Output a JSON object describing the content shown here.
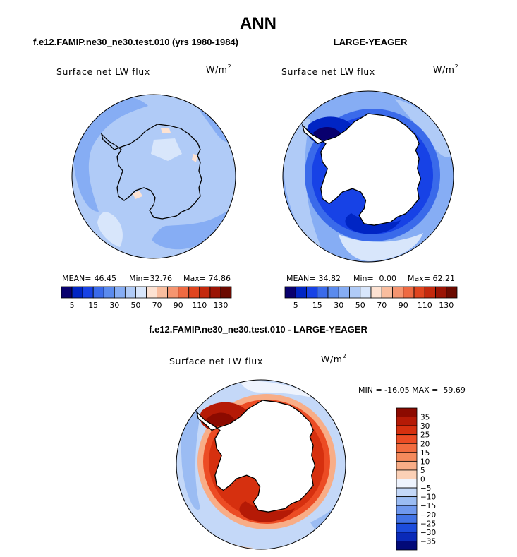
{
  "figure": {
    "title": "ANN",
    "panel_a_title": "f.e12.FAMIP.ne30_ne30.test.010 (yrs 1980-1984)",
    "panel_b_title": "LARGE-YEAGER",
    "panel_c_title": "f.e12.FAMIP.ne30_ne30.test.010 - LARGE-YEAGER"
  },
  "chart_data": [
    {
      "type": "heatmap",
      "projection": "south-polar-stereographic",
      "title": "f.e12.FAMIP.ne30_ne30.test.010 (yrs 1980-1984)",
      "variable": "Surface net LW flux",
      "units_base": "W/m",
      "units_exp": "2",
      "stats": {
        "mean_label": "MEAN=",
        "mean": "46.45",
        "min_label": "Min=",
        "min": "32.76",
        "max_label": "Max=",
        "max": "74.86"
      },
      "colorbar": {
        "orientation": "horizontal",
        "levels": [
          5,
          10,
          15,
          20,
          30,
          40,
          50,
          60,
          70,
          80,
          90,
          100,
          110,
          120,
          130
        ],
        "tick_labels": [
          "5",
          "15",
          "30",
          "50",
          "70",
          "90",
          "110",
          "130"
        ],
        "colors": [
          "#08006e",
          "#0025c4",
          "#1742e6",
          "#3a6aea",
          "#5b8bee",
          "#86adf4",
          "#b0cbf7",
          "#d8e6fb",
          "#fde2d2",
          "#f9bd9e",
          "#f59570",
          "#ee6a42",
          "#e0451f",
          "#c4290d",
          "#9b1404",
          "#6b0a00"
        ]
      },
      "field": {
        "ocean_level": 40,
        "ice_shelf_level": 70,
        "land_level": 60
      }
    },
    {
      "type": "heatmap",
      "projection": "south-polar-stereographic",
      "title": "LARGE-YEAGER",
      "variable": "Surface net LW flux",
      "units_base": "W/m",
      "units_exp": "2",
      "stats": {
        "mean_label": "MEAN=",
        "mean": "34.82",
        "min_label": "Min=",
        "min": "0.00",
        "max_label": "Max=",
        "max": "62.21"
      },
      "colorbar": {
        "orientation": "horizontal",
        "levels": [
          5,
          10,
          15,
          20,
          30,
          40,
          50,
          60,
          70,
          80,
          90,
          100,
          110,
          120,
          130
        ],
        "tick_labels": [
          "5",
          "15",
          "30",
          "50",
          "70",
          "90",
          "110",
          "130"
        ],
        "colors": [
          "#08006e",
          "#0025c4",
          "#1742e6",
          "#3a6aea",
          "#5b8bee",
          "#86adf4",
          "#b0cbf7",
          "#d8e6fb",
          "#fde2d2",
          "#f9bd9e",
          "#f59570",
          "#ee6a42",
          "#e0451f",
          "#c4290d",
          "#9b1404",
          "#6b0a00"
        ]
      },
      "field": {
        "ocean_level": 40,
        "sea_ice_ring_level": 15,
        "land": "missing"
      }
    },
    {
      "type": "heatmap",
      "projection": "south-polar-stereographic",
      "title": "f.e12.FAMIP.ne30_ne30.test.010 - LARGE-YEAGER",
      "variable": "Surface net LW flux",
      "units_base": "W/m",
      "units_exp": "2",
      "stats_text": "MIN = -16.05 MAX =  59.69",
      "colorbar": {
        "orientation": "vertical",
        "levels": [
          35,
          30,
          25,
          20,
          15,
          10,
          5,
          0,
          -5,
          -10,
          -15,
          -20,
          -25,
          -30,
          -35
        ],
        "tick_labels": [
          "35",
          "30",
          "25",
          "20",
          "15",
          "10",
          "5",
          "0",
          "−5",
          "−10",
          "−15",
          "−20",
          "−25",
          "−30",
          "−35"
        ],
        "colors": [
          "#8c0a00",
          "#b51a06",
          "#d6300f",
          "#ec4c24",
          "#f26c3f",
          "#f58a5c",
          "#f8ad87",
          "#fbd0b6",
          "#eef3fd",
          "#c4d8f8",
          "#9bbcf3",
          "#6f98ee",
          "#4273e6",
          "#1c4cdc",
          "#0a2ab8",
          "#020a78"
        ]
      },
      "field": {
        "ocean_level": -2,
        "sea_ice_ring_level": 25,
        "land": "missing"
      }
    }
  ]
}
